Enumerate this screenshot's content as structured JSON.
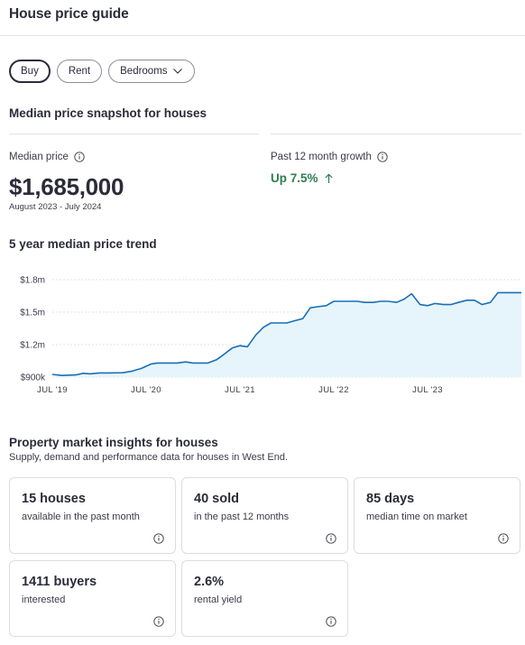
{
  "header": {
    "title": "House price guide"
  },
  "filters": [
    {
      "label": "Buy",
      "active": true
    },
    {
      "label": "Rent",
      "active": false
    },
    {
      "label": "Bedrooms",
      "active": false,
      "icon": "chevron-down-icon"
    }
  ],
  "snapshot": {
    "title": "Median price snapshot for houses",
    "median_label": "Median price",
    "median_value": "$1,685,000",
    "date_range": "August 2023 - July 2024",
    "growth_label": "Past 12 month growth",
    "growth_value": "Up 7.5%",
    "growth_color": "#2e7d4f"
  },
  "trend": {
    "title": "5 year median price trend"
  },
  "chart_data": {
    "type": "area",
    "y_tick_labels": [
      "$1.8m",
      "$1.5m",
      "$1.2m",
      "$900k"
    ],
    "y_ticks": [
      1800000,
      1500000,
      1200000,
      900000
    ],
    "ylim": [
      900000,
      1800000
    ],
    "x_tick_labels": [
      "JUL '19",
      "JUL '20",
      "JUL '21",
      "JUL '22",
      "JUL '23"
    ],
    "x_ticks": [
      2019.5,
      2020.5,
      2021.5,
      2022.5,
      2023.5
    ],
    "xlim": [
      2019.5,
      2024.5
    ],
    "line_color": "#1a6fb8",
    "fill_color": "#e6f5fb",
    "grid": true,
    "series": [
      {
        "x": [
          2019.5,
          2019.6,
          2019.75,
          2019.83,
          2019.9,
          2020.0,
          2020.1,
          2020.25,
          2020.35,
          2020.45,
          2020.55,
          2020.62,
          2020.7,
          2020.83,
          2020.92,
          2021.0,
          2021.08,
          2021.16,
          2021.25,
          2021.33,
          2021.42,
          2021.5,
          2021.58,
          2021.67,
          2021.75,
          2021.83,
          2021.92,
          2022.0,
          2022.08,
          2022.17,
          2022.25,
          2022.33,
          2022.42,
          2022.5,
          2022.58,
          2022.67,
          2022.75,
          2022.83,
          2022.92,
          2023.0,
          2023.08,
          2023.17,
          2023.25,
          2023.33,
          2023.42,
          2023.5,
          2023.58,
          2023.67,
          2023.75,
          2023.83,
          2023.92,
          2024.0,
          2024.08,
          2024.17,
          2024.25,
          2024.33,
          2024.42,
          2024.5
        ],
        "y": [
          925000,
          915000,
          920000,
          935000,
          930000,
          938000,
          938000,
          940000,
          955000,
          980000,
          1020000,
          1030000,
          1030000,
          1030000,
          1040000,
          1030000,
          1030000,
          1030000,
          1060000,
          1110000,
          1170000,
          1190000,
          1180000,
          1290000,
          1360000,
          1400000,
          1400000,
          1400000,
          1420000,
          1440000,
          1540000,
          1550000,
          1560000,
          1600000,
          1600000,
          1600000,
          1600000,
          1590000,
          1590000,
          1600000,
          1600000,
          1590000,
          1620000,
          1670000,
          1570000,
          1560000,
          1580000,
          1570000,
          1570000,
          1590000,
          1610000,
          1610000,
          1570000,
          1590000,
          1680000,
          1680000,
          1680000,
          1680000
        ]
      }
    ]
  },
  "insights": {
    "title": "Property market insights for houses",
    "subtitle": "Supply, demand and performance data for houses in West End.",
    "cards": [
      {
        "value": "15 houses",
        "desc": "available in the past month"
      },
      {
        "value": "40 sold",
        "desc": "in the past 12 months"
      },
      {
        "value": "85 days",
        "desc": "median time on market"
      },
      {
        "value": "1411 buyers",
        "desc": "interested"
      },
      {
        "value": "2.6%",
        "desc": "rental yield"
      }
    ]
  }
}
